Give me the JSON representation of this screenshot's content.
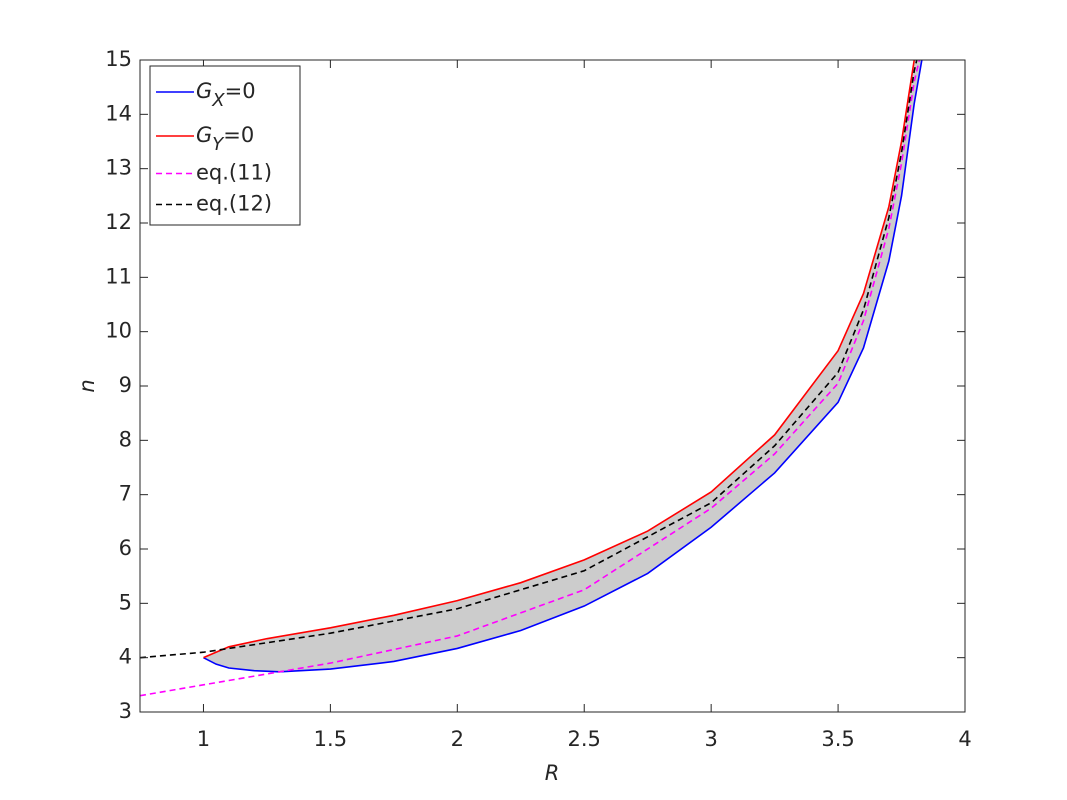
{
  "chart_data": {
    "type": "line",
    "xlabel": "R",
    "ylabel": "n",
    "xlim": [
      0.75,
      4
    ],
    "ylim": [
      3,
      15
    ],
    "xticks": [
      1,
      1.5,
      2,
      2.5,
      3,
      3.5,
      4
    ],
    "yticks": [
      3,
      4,
      5,
      6,
      7,
      8,
      9,
      10,
      11,
      12,
      13,
      14,
      15
    ],
    "fill_color": "#cccccc",
    "legend": "upper left",
    "series": [
      {
        "name": "GX=0",
        "color": "#0000ff",
        "dash": false,
        "x": [
          1,
          1.05,
          1.1,
          1.2,
          1.3,
          1.5,
          1.75,
          2,
          2.25,
          2.5,
          2.75,
          3,
          3.25,
          3.5,
          3.6,
          3.7,
          3.75,
          3.8,
          3.83
        ],
        "values": [
          4,
          3.88,
          3.81,
          3.76,
          3.74,
          3.79,
          3.93,
          4.17,
          4.5,
          4.95,
          5.55,
          6.4,
          7.4,
          8.7,
          9.7,
          11.3,
          12.5,
          14.2,
          15
        ]
      },
      {
        "name": "GY=0",
        "color": "#ff0000",
        "dash": false,
        "x": [
          1,
          1.1,
          1.25,
          1.5,
          1.75,
          2,
          2.25,
          2.5,
          2.75,
          3,
          3.25,
          3.5,
          3.6,
          3.7,
          3.75,
          3.8
        ],
        "values": [
          4,
          4.2,
          4.35,
          4.55,
          4.78,
          5.05,
          5.38,
          5.8,
          6.33,
          7.05,
          8.1,
          9.65,
          10.7,
          12.3,
          13.5,
          15
        ]
      },
      {
        "name": "eq.(11)",
        "color": "#ff00ff",
        "dash": true,
        "x": [
          0.75,
          1,
          1.5,
          2,
          2.5,
          3,
          3.25,
          3.5,
          3.6,
          3.7,
          3.75,
          3.8,
          3.82
        ],
        "values": [
          3.3,
          3.5,
          3.9,
          4.4,
          5.25,
          6.75,
          7.75,
          9.05,
          10.2,
          11.9,
          13.1,
          14.6,
          15
        ]
      },
      {
        "name": "eq.(12)",
        "color": "#000000",
        "dash": true,
        "x": [
          0.75,
          1,
          1.5,
          2,
          2.5,
          3,
          3.25,
          3.5,
          3.6,
          3.7,
          3.75,
          3.8,
          3.81
        ],
        "values": [
          4,
          4.1,
          4.45,
          4.9,
          5.6,
          6.85,
          7.9,
          9.25,
          10.4,
          12.1,
          13.3,
          14.8,
          15
        ]
      }
    ]
  }
}
